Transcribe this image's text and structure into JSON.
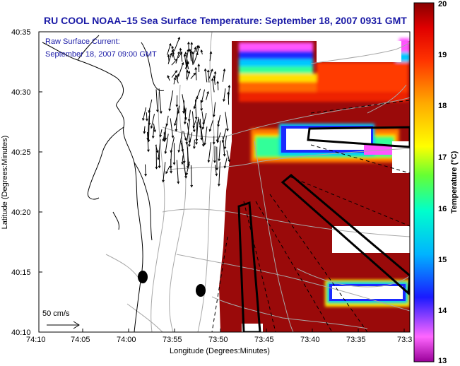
{
  "title": "RU COOL  NOAA–15  Sea Surface Temperature:  September 18, 2007 0931 GMT",
  "legend": {
    "line1": "Raw Surface Current:",
    "line2": "September 18, 2007 09:00 GMT"
  },
  "scale_arrow_label": "50 cm/s",
  "axes": {
    "xlabel": "Longitude (Degrees:Minutes)",
    "ylabel": "Latitude (Degrees:Minutes)",
    "x_ticks": [
      "74:10",
      "74:05",
      "74:00",
      "73:55",
      "73:50",
      "73:45",
      "73:40",
      "73:35",
      "73:3"
    ],
    "y_ticks": [
      "40:35",
      "40:30",
      "40:25",
      "40:20",
      "40:15",
      "40:10"
    ]
  },
  "colorbar": {
    "label": "Temperature (°C)",
    "ticks": [
      "20",
      "19",
      "18",
      "17",
      "16",
      "15",
      "14",
      "13"
    ],
    "min": 13,
    "max": 20,
    "colors": [
      "#ff66ff",
      "#3333ff",
      "#00ccff",
      "#33ff99",
      "#ccff33",
      "#ffcc00",
      "#ff6600",
      "#ff0000",
      "#990000"
    ]
  },
  "colors": {
    "sst_warm": "#9a0a0a",
    "title": "#1a1aa6"
  }
}
